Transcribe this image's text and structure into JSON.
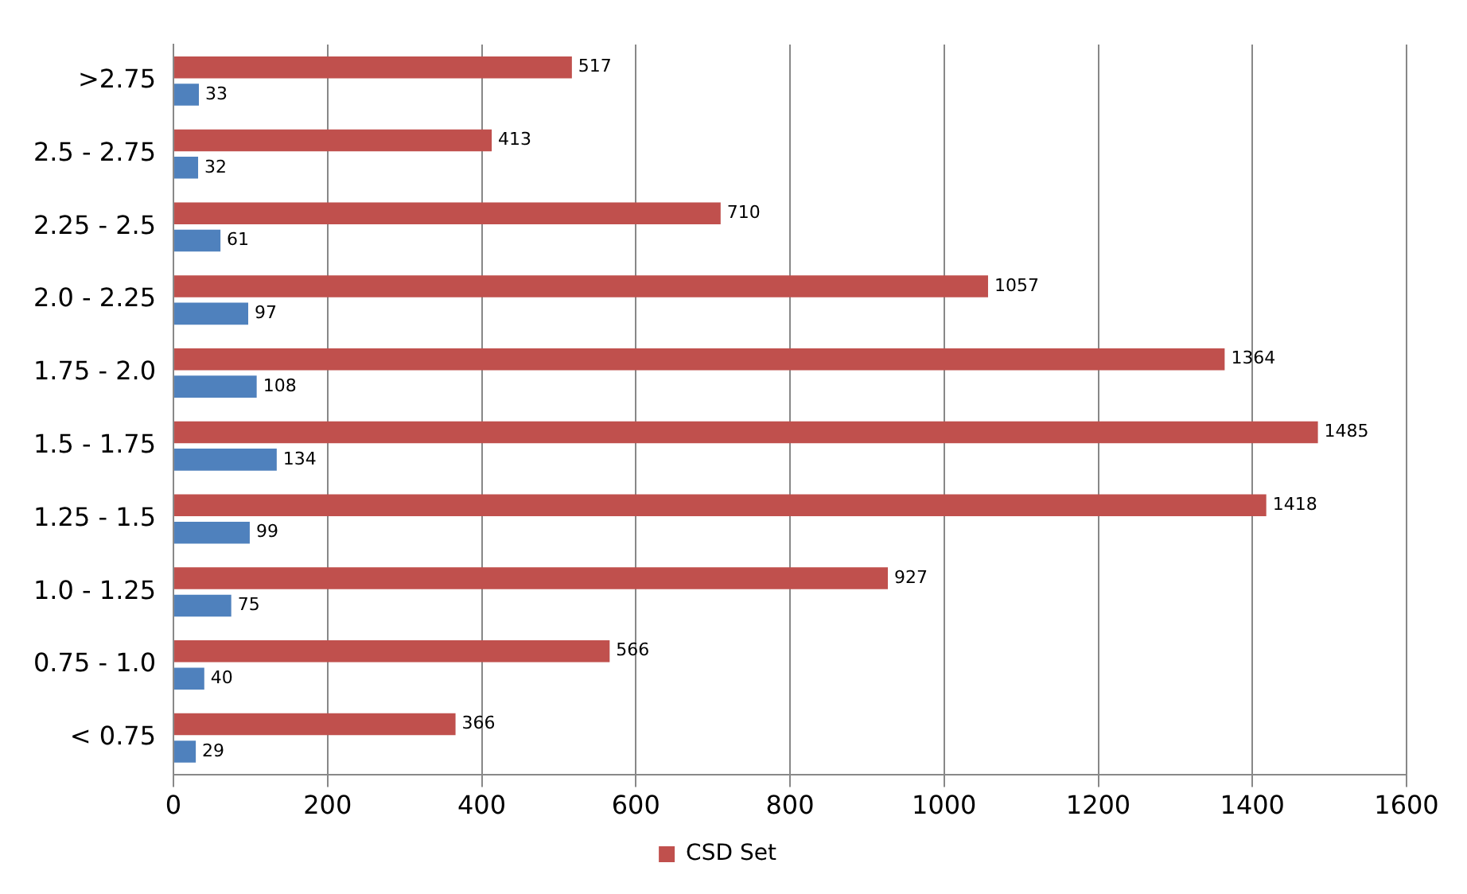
{
  "chart_data": {
    "type": "bar",
    "orientation": "horizontal",
    "categories": [
      ">2.75",
      "2.5 - 2.75",
      "2.25 - 2.5",
      "2.0 - 2.25",
      "1.75 - 2.0",
      "1.5 - 1.75",
      "1.25 - 1.5",
      "1.0 - 1.25",
      "0.75 - 1.0",
      "< 0.75"
    ],
    "series": [
      {
        "name": "CSD Set",
        "color": "#c0504d",
        "values": [
          517,
          413,
          710,
          1057,
          1364,
          1485,
          1418,
          927,
          566,
          366
        ]
      },
      {
        "color": "#4f81bd",
        "values": [
          33,
          32,
          61,
          97,
          108,
          134,
          99,
          75,
          40,
          29
        ]
      }
    ],
    "xlim": [
      0,
      1600
    ],
    "xticks": [
      0,
      200,
      400,
      600,
      800,
      1000,
      1200,
      1400,
      1600
    ],
    "grid": "x",
    "legend": "bottom",
    "data_labels": true
  }
}
